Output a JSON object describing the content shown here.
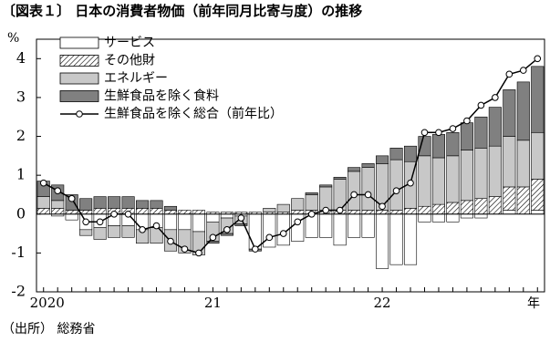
{
  "chart_data": {
    "type": "stacked-bar-line",
    "title": "〔図表１〕 日本の消費者物価（前年同月比寄与度）の推移",
    "y_unit": "%",
    "x_unit": "年",
    "source": "（出所） 総務省",
    "categories": [
      "2020",
      null,
      null,
      null,
      null,
      null,
      null,
      null,
      null,
      null,
      null,
      null,
      "21",
      null,
      null,
      null,
      null,
      null,
      null,
      null,
      null,
      null,
      null,
      null,
      "22",
      null,
      null,
      null,
      null,
      null,
      null,
      null,
      null,
      null,
      null,
      null
    ],
    "series": [
      {
        "name": "サービス",
        "color": "#ffffff",
        "values": [
          0.0,
          -0.05,
          -0.15,
          -0.4,
          -0.35,
          -0.3,
          -0.3,
          -0.4,
          -0.35,
          -0.4,
          -0.4,
          -0.45,
          -0.2,
          -0.1,
          -0.05,
          -0.9,
          -0.85,
          -0.8,
          -0.7,
          -0.6,
          -0.6,
          -0.8,
          -0.6,
          -0.6,
          -1.4,
          -1.3,
          -1.3,
          -0.2,
          -0.2,
          -0.2,
          -0.1,
          -0.1,
          0.0,
          0.1,
          0.0,
          0.1
        ]
      },
      {
        "name": "その他財",
        "color": "#ffffff",
        "pattern": "hatch",
        "values": [
          0.15,
          0.15,
          0.1,
          0.1,
          0.15,
          0.15,
          0.15,
          0.15,
          0.15,
          0.1,
          0.1,
          0.1,
          0.05,
          0.05,
          0.05,
          0.05,
          0.05,
          0.05,
          0.1,
          0.1,
          0.1,
          0.1,
          0.1,
          0.1,
          0.1,
          0.1,
          0.15,
          0.2,
          0.25,
          0.3,
          0.35,
          0.4,
          0.45,
          0.6,
          0.7,
          0.8
        ]
      },
      {
        "name": "エネルギー",
        "color": "#c8c8c8",
        "values": [
          0.3,
          0.2,
          0.0,
          -0.15,
          -0.3,
          -0.3,
          -0.3,
          -0.35,
          -0.4,
          -0.55,
          -0.6,
          -0.6,
          -0.5,
          -0.4,
          -0.2,
          0.0,
          0.1,
          0.2,
          0.3,
          0.4,
          0.6,
          0.8,
          1.0,
          1.1,
          1.2,
          1.3,
          1.2,
          1.3,
          1.2,
          1.2,
          1.3,
          1.3,
          1.3,
          1.3,
          1.2,
          1.2
        ]
      },
      {
        "name": "生鮮食品を除く食料",
        "color": "#808080",
        "values": [
          0.4,
          0.4,
          0.4,
          0.3,
          0.3,
          0.3,
          0.3,
          0.2,
          0.2,
          0.1,
          0.0,
          0.0,
          -0.05,
          -0.05,
          -0.05,
          -0.05,
          0.0,
          0.0,
          0.0,
          0.05,
          0.05,
          0.05,
          0.1,
          0.1,
          0.2,
          0.3,
          0.4,
          0.5,
          0.6,
          0.6,
          0.7,
          0.8,
          1.0,
          1.2,
          1.5,
          1.7
        ]
      },
      {
        "name": "生鮮食品を除く総合（前年比）",
        "type": "line",
        "color": "#000000",
        "values": [
          0.8,
          0.6,
          0.4,
          -0.2,
          -0.2,
          0.0,
          0.0,
          -0.4,
          -0.3,
          -0.7,
          -0.9,
          -1.0,
          -0.6,
          -0.4,
          -0.1,
          -0.9,
          -0.6,
          -0.5,
          -0.2,
          0.0,
          0.1,
          0.1,
          0.5,
          0.5,
          0.2,
          0.6,
          0.8,
          2.1,
          2.1,
          2.2,
          2.4,
          2.8,
          3.0,
          3.6,
          3.7,
          4.0
        ]
      }
    ],
    "ylim": [
      -2,
      4.5
    ],
    "yticks": [
      -2,
      -1,
      0,
      1,
      2,
      3,
      4
    ]
  }
}
